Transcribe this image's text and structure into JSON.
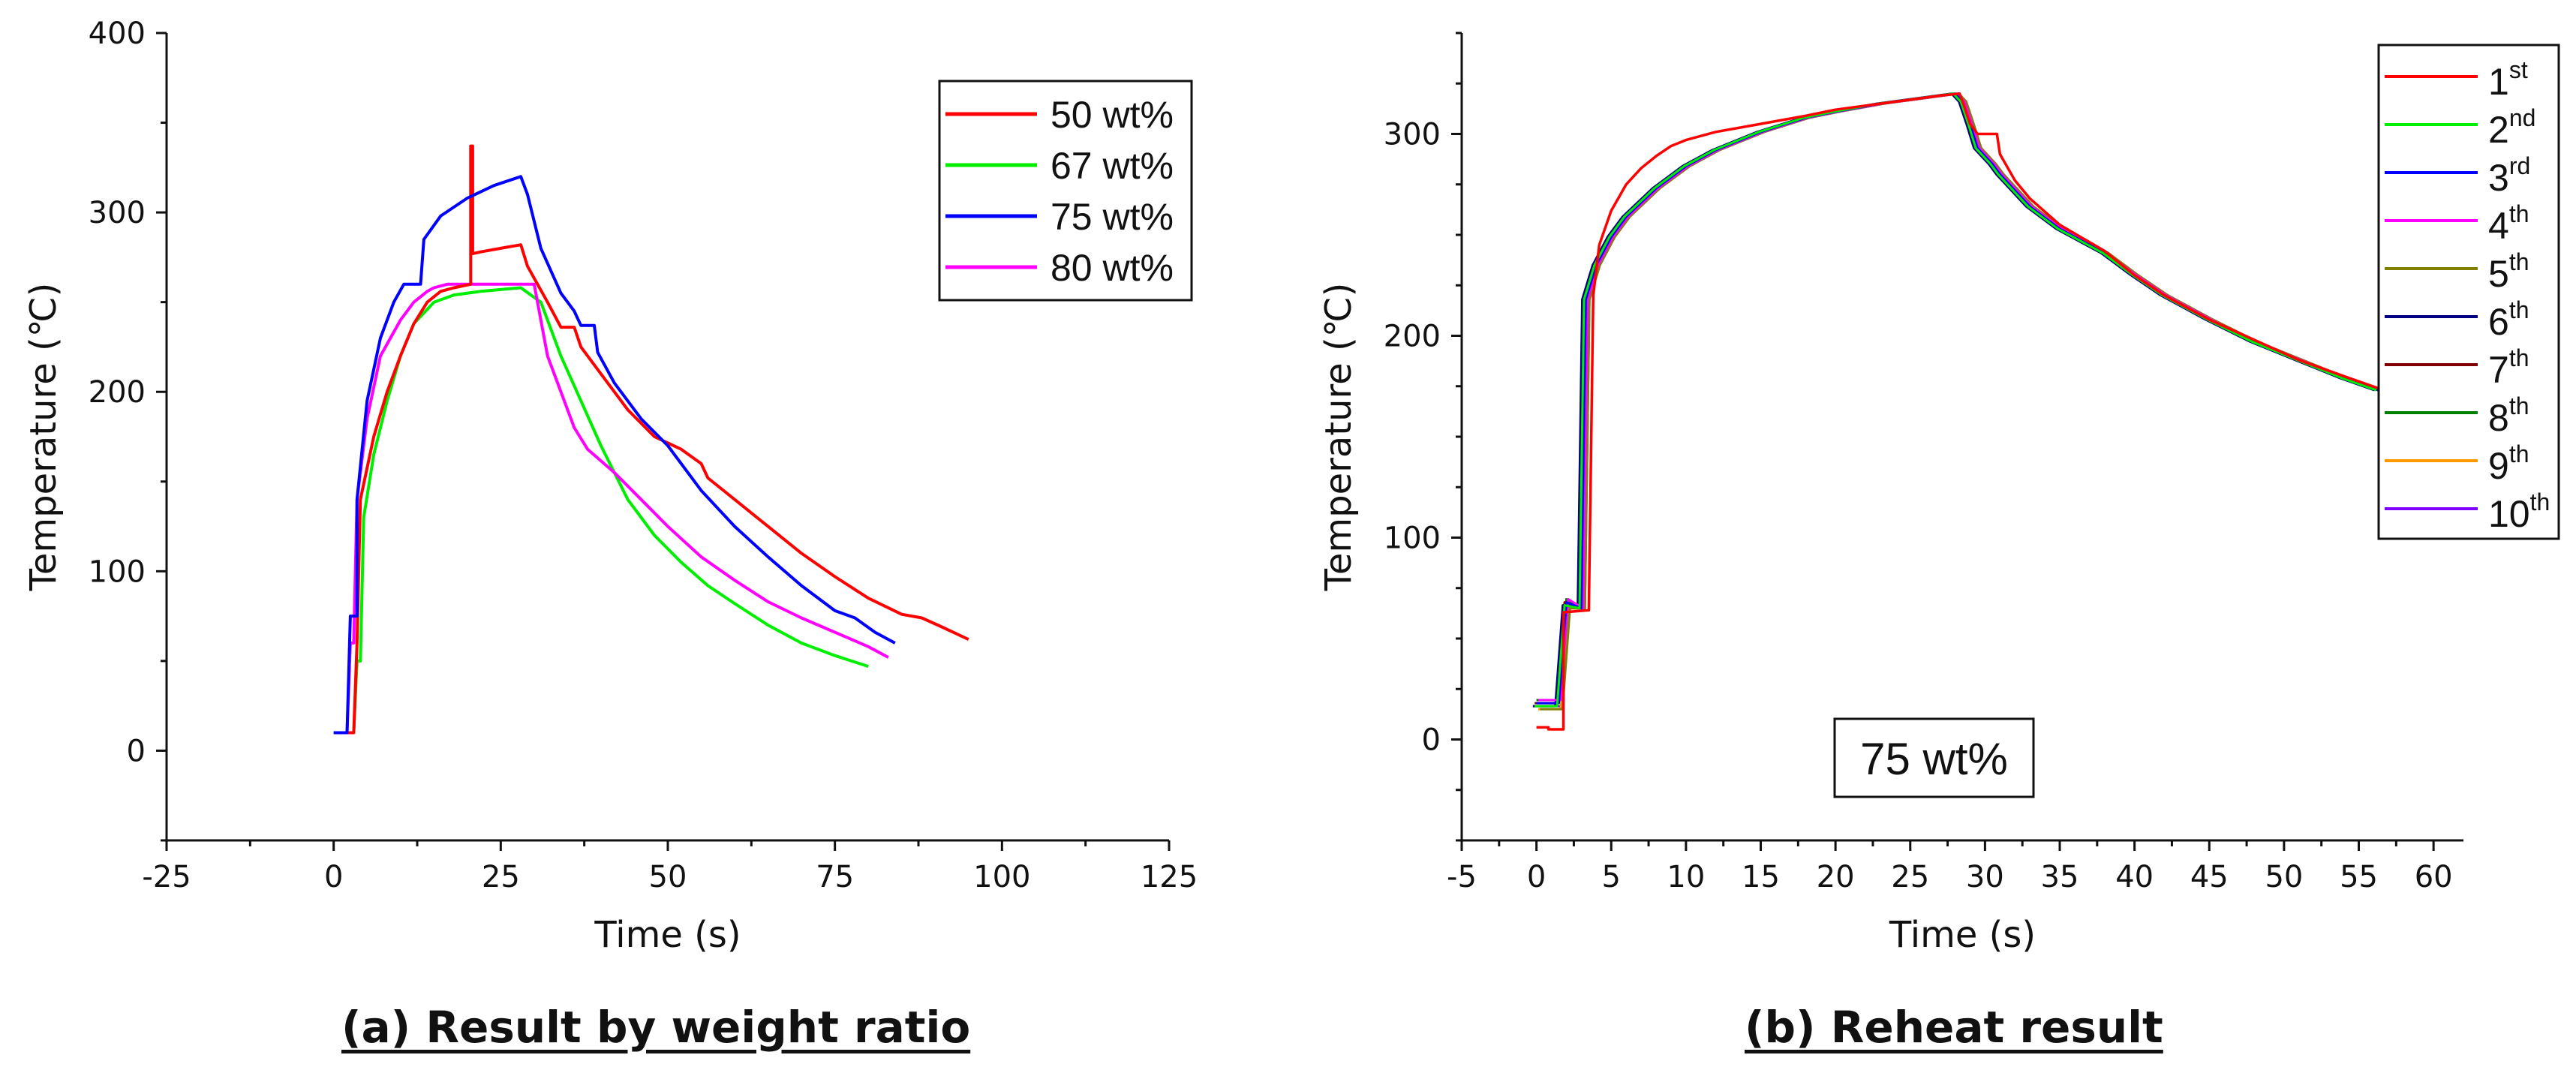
{
  "chart_data": [
    {
      "type": "line",
      "title": "",
      "xlabel": "Time (s)",
      "ylabel": "Temperature (℃)",
      "xlim": [
        -25,
        125
      ],
      "ylim": [
        -50,
        400
      ],
      "xticks": [
        -25,
        0,
        25,
        50,
        75,
        100,
        125
      ],
      "yticks": [
        0,
        100,
        200,
        300,
        400
      ],
      "legend_position": "top-right",
      "series": [
        {
          "name": "50 wt%",
          "color": "#ff0000",
          "points": [
            [
              1,
              10
            ],
            [
              3,
              10
            ],
            [
              3.5,
              60
            ],
            [
              4,
              140
            ],
            [
              6,
              175
            ],
            [
              8,
              200
            ],
            [
              10,
              220
            ],
            [
              12,
              238
            ],
            [
              14,
              250
            ],
            [
              16,
              256
            ],
            [
              18,
              258
            ],
            [
              20.5,
              260
            ],
            [
              20.5,
              337
            ],
            [
              20.8,
              337
            ],
            [
              20.8,
              277
            ],
            [
              22,
              278
            ],
            [
              25,
              280
            ],
            [
              28,
              282
            ],
            [
              29,
              270
            ],
            [
              32,
              250
            ],
            [
              34,
              236
            ],
            [
              36,
              236
            ],
            [
              37,
              225
            ],
            [
              40,
              210
            ],
            [
              44,
              190
            ],
            [
              48,
              175
            ],
            [
              52,
              168
            ],
            [
              55,
              160
            ],
            [
              56,
              152
            ],
            [
              60,
              140
            ],
            [
              65,
              125
            ],
            [
              70,
              110
            ],
            [
              75,
              97
            ],
            [
              80,
              85
            ],
            [
              85,
              76
            ],
            [
              88,
              74
            ],
            [
              91,
              69
            ],
            [
              95,
              62
            ]
          ]
        },
        {
          "name": "67 wt%",
          "color": "#00ee00",
          "points": [
            [
              2,
              10
            ],
            [
              3,
              10
            ],
            [
              3.5,
              50
            ],
            [
              4,
              50
            ],
            [
              4.5,
              130
            ],
            [
              6,
              165
            ],
            [
              8,
              195
            ],
            [
              10,
              220
            ],
            [
              12,
              238
            ],
            [
              15,
              250
            ],
            [
              18,
              254
            ],
            [
              22,
              256
            ],
            [
              28,
              258
            ],
            [
              31,
              250
            ],
            [
              34,
              220
            ],
            [
              37,
              195
            ],
            [
              40,
              170
            ],
            [
              44,
              140
            ],
            [
              48,
              120
            ],
            [
              52,
              105
            ],
            [
              56,
              92
            ],
            [
              60,
              82
            ],
            [
              65,
              70
            ],
            [
              70,
              60
            ],
            [
              75,
              53
            ],
            [
              80,
              47
            ]
          ]
        },
        {
          "name": "75 wt%",
          "color": "#0000ff",
          "points": [
            [
              0,
              10
            ],
            [
              2,
              10
            ],
            [
              2.5,
              75
            ],
            [
              3.5,
              75
            ],
            [
              3.5,
              140
            ],
            [
              5,
              195
            ],
            [
              7,
              230
            ],
            [
              9,
              250
            ],
            [
              10.5,
              260
            ],
            [
              13,
              260
            ],
            [
              13.5,
              285
            ],
            [
              16,
              298
            ],
            [
              20,
              308
            ],
            [
              24,
              315
            ],
            [
              28,
              320
            ],
            [
              29,
              310
            ],
            [
              31,
              280
            ],
            [
              34,
              255
            ],
            [
              36,
              245
            ],
            [
              37,
              237
            ],
            [
              39,
              237
            ],
            [
              39.5,
              222
            ],
            [
              42,
              205
            ],
            [
              46,
              185
            ],
            [
              50,
              170
            ],
            [
              55,
              145
            ],
            [
              60,
              125
            ],
            [
              65,
              108
            ],
            [
              70,
              92
            ],
            [
              75,
              78
            ],
            [
              78,
              74
            ],
            [
              81,
              66
            ],
            [
              84,
              60
            ]
          ]
        },
        {
          "name": "80 wt%",
          "color": "#ff00ff",
          "points": [
            [
              0,
              10
            ],
            [
              2,
              10
            ],
            [
              2.5,
              60
            ],
            [
              3,
              60
            ],
            [
              3.5,
              140
            ],
            [
              5,
              185
            ],
            [
              7,
              220
            ],
            [
              10,
              240
            ],
            [
              12,
              250
            ],
            [
              14,
              256
            ],
            [
              15,
              258
            ],
            [
              17,
              260
            ],
            [
              30,
              260
            ],
            [
              31,
              240
            ],
            [
              32,
              220
            ],
            [
              34,
              200
            ],
            [
              36,
              180
            ],
            [
              38,
              168
            ],
            [
              42,
              155
            ],
            [
              46,
              140
            ],
            [
              50,
              125
            ],
            [
              55,
              108
            ],
            [
              60,
              95
            ],
            [
              65,
              83
            ],
            [
              70,
              74
            ],
            [
              75,
              66
            ],
            [
              80,
              58
            ],
            [
              83,
              52
            ]
          ]
        }
      ]
    },
    {
      "type": "line",
      "title": "",
      "xlabel": "Time (s)",
      "ylabel": "Temperature (℃)",
      "xlim": [
        -5,
        62
      ],
      "ylim": [
        -50,
        350
      ],
      "xticks": [
        -5,
        0,
        5,
        10,
        15,
        20,
        25,
        30,
        35,
        40,
        45,
        50,
        55,
        60
      ],
      "yticks": [
        0,
        100,
        200,
        300
      ],
      "legend_position": "top-right",
      "annotation": "75 wt%",
      "first_run_points": [
        [
          0,
          6
        ],
        [
          0.8,
          6
        ],
        [
          0.8,
          5
        ],
        [
          1.8,
          5
        ],
        [
          1.8,
          63
        ],
        [
          3.5,
          64
        ],
        [
          3.8,
          220
        ],
        [
          4.2,
          245
        ],
        [
          5,
          262
        ],
        [
          6,
          275
        ],
        [
          7,
          283
        ],
        [
          8,
          289
        ],
        [
          9,
          294
        ],
        [
          10,
          297
        ],
        [
          12,
          301
        ],
        [
          15,
          305
        ],
        [
          18,
          309
        ],
        [
          20,
          312
        ],
        [
          22,
          314
        ],
        [
          25,
          317
        ],
        [
          27,
          319
        ],
        [
          28.3,
          320
        ],
        [
          28.6,
          314
        ],
        [
          29,
          305
        ],
        [
          29.5,
          300
        ],
        [
          30.8,
          300
        ],
        [
          31,
          290
        ],
        [
          32,
          277
        ],
        [
          33,
          268
        ],
        [
          35,
          255
        ],
        [
          38,
          242
        ],
        [
          40,
          230
        ],
        [
          42,
          220
        ],
        [
          45,
          208
        ],
        [
          48,
          198
        ],
        [
          51,
          188
        ],
        [
          54,
          180
        ],
        [
          56.3,
          174
        ]
      ],
      "later_run_points": [
        [
          0,
          15
        ],
        [
          1.5,
          15
        ],
        [
          2,
          65
        ],
        [
          3,
          65
        ],
        [
          3.3,
          218
        ],
        [
          4,
          235
        ],
        [
          5,
          249
        ],
        [
          6,
          259
        ],
        [
          8,
          273
        ],
        [
          10,
          284
        ],
        [
          12,
          292
        ],
        [
          15,
          301
        ],
        [
          18,
          308
        ],
        [
          20,
          311
        ],
        [
          23,
          315
        ],
        [
          26,
          318
        ],
        [
          28,
          320
        ],
        [
          28.5,
          316
        ],
        [
          29,
          305
        ],
        [
          29.5,
          293
        ],
        [
          30.5,
          285
        ],
        [
          31,
          280
        ],
        [
          32,
          272
        ],
        [
          33,
          264
        ],
        [
          35,
          253
        ],
        [
          38,
          241
        ],
        [
          40,
          230
        ],
        [
          42,
          220
        ],
        [
          45,
          208
        ],
        [
          48,
          197
        ],
        [
          51,
          188
        ],
        [
          54,
          179
        ],
        [
          56.3,
          173
        ]
      ],
      "series": [
        {
          "name": "1",
          "sup": "st",
          "color": "#ff0000"
        },
        {
          "name": "2",
          "sup": "nd",
          "color": "#00ee00"
        },
        {
          "name": "3",
          "sup": "rd",
          "color": "#0000ff"
        },
        {
          "name": "4",
          "sup": "th",
          "color": "#ff00ff"
        },
        {
          "name": "5",
          "sup": "th",
          "color": "#808000"
        },
        {
          "name": "6",
          "sup": "th",
          "color": "#000080"
        },
        {
          "name": "7",
          "sup": "th",
          "color": "#800000"
        },
        {
          "name": "8",
          "sup": "th",
          "color": "#008000"
        },
        {
          "name": "9",
          "sup": "th",
          "color": "#ff9900"
        },
        {
          "name": "10",
          "sup": "th",
          "color": "#8000ff"
        }
      ]
    }
  ],
  "captions": {
    "a": "(a) Result by weight ratio",
    "b": "(b) Reheat result"
  }
}
